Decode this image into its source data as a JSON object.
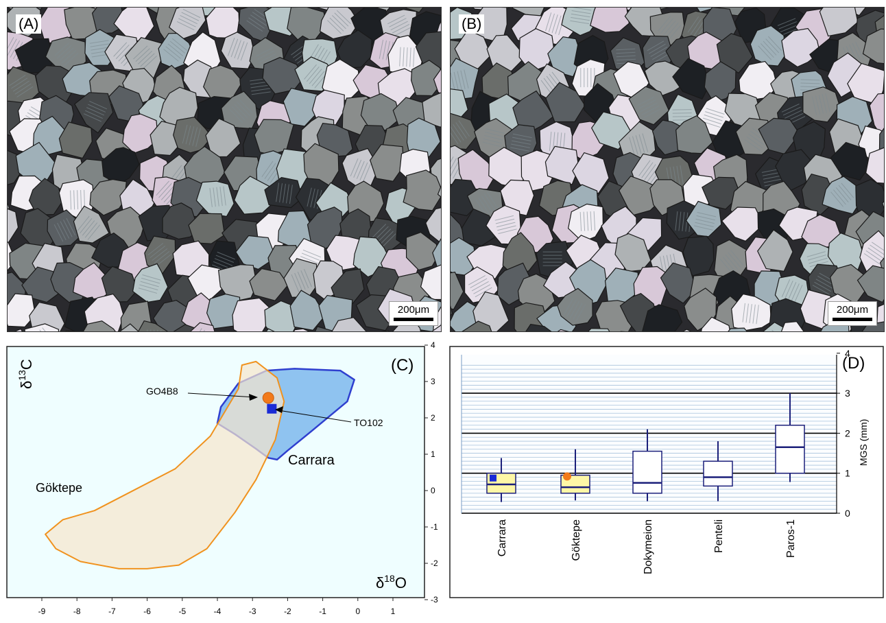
{
  "panels": {
    "A": {
      "label": "(A)",
      "scale_label": "200μm"
    },
    "B": {
      "label": "(B)",
      "scale_label": "200μm"
    },
    "C": {
      "label": "(C)",
      "y_title": "δ13C",
      "x_title": "δ18O",
      "x_ticks": [
        "-9",
        "-8",
        "-7",
        "-6",
        "-5",
        "-4",
        "-3",
        "-2",
        "-1",
        "0",
        "1"
      ],
      "y_ticks": [
        "4",
        "3",
        "2",
        "1",
        "0",
        "-1",
        "-2",
        "-3"
      ],
      "fields": {
        "goktepe": "Göktepe",
        "carrara": "Carrara"
      },
      "samples": {
        "go4b8": "GO4B8",
        "to102": "TO102"
      },
      "colors": {
        "goktepe_fill": "#f7e6cc",
        "goktepe_stroke": "#f0921e",
        "carrara_fill": "#8fc3f0",
        "carrara_stroke": "#2f3fcf",
        "background": "#effeff"
      }
    },
    "D": {
      "label": "(D)",
      "y_title": "MGS (mm)",
      "y_ticks": [
        "4",
        "3",
        "2",
        "1",
        "0"
      ],
      "categories": [
        "Carrara",
        "Göktepe",
        "Dokymeion",
        "Penteli",
        "Paros-1"
      ]
    }
  },
  "chart_data": [
    {
      "type": "scatter",
      "panel": "C",
      "title": "",
      "xlabel": "δ18O",
      "ylabel": "δ13C",
      "xlim": [
        -9.5,
        2
      ],
      "ylim": [
        -3,
        4
      ],
      "series": [
        {
          "name": "GO4B8",
          "x": [
            -2.55
          ],
          "y": [
            2.55
          ]
        },
        {
          "name": "TO102",
          "x": [
            -2.45
          ],
          "y": [
            2.25
          ]
        }
      ],
      "fields": [
        {
          "name": "Göktepe",
          "outline": [
            [
              -8.4,
              -0.8
            ],
            [
              -7.5,
              -0.55
            ],
            [
              -6.5,
              -0.05
            ],
            [
              -5.2,
              0.6
            ],
            [
              -4.2,
              1.5
            ],
            [
              -3.4,
              2.8
            ],
            [
              -3.3,
              3.45
            ],
            [
              -2.9,
              3.55
            ],
            [
              -2.3,
              3.1
            ],
            [
              -2.1,
              2.45
            ],
            [
              -2.35,
              1.4
            ],
            [
              -2.9,
              0.3
            ],
            [
              -3.5,
              -0.6
            ],
            [
              -4.3,
              -1.6
            ],
            [
              -5.1,
              -2.05
            ],
            [
              -6.0,
              -2.15
            ],
            [
              -6.8,
              -2.15
            ],
            [
              -7.9,
              -1.95
            ],
            [
              -8.6,
              -1.6
            ],
            [
              -8.9,
              -1.2
            ]
          ]
        },
        {
          "name": "Carrara",
          "outline": [
            [
              -4.0,
              1.85
            ],
            [
              -3.9,
              2.3
            ],
            [
              -3.4,
              2.95
            ],
            [
              -2.6,
              3.3
            ],
            [
              -1.8,
              3.35
            ],
            [
              -0.5,
              3.3
            ],
            [
              -0.1,
              3.05
            ],
            [
              -0.3,
              2.45
            ],
            [
              -1.3,
              1.65
            ],
            [
              -2.0,
              1.1
            ],
            [
              -2.3,
              0.85
            ],
            [
              -2.55,
              0.9
            ],
            [
              -2.9,
              1.15
            ],
            [
              -3.5,
              1.55
            ]
          ]
        }
      ]
    },
    {
      "type": "box",
      "panel": "D",
      "title": "",
      "xlabel": "",
      "ylabel": "MGS (mm)",
      "ylim": [
        0,
        4
      ],
      "categories": [
        "Carrara",
        "Göktepe",
        "Dokymeion",
        "Penteli",
        "Paros-1"
      ],
      "series": [
        {
          "whisker_low": [
            0.28,
            0.32,
            0.3,
            0.3,
            0.78
          ],
          "q1": [
            0.5,
            0.5,
            0.5,
            0.68,
            1.0
          ],
          "median": [
            0.72,
            0.65,
            0.76,
            0.9,
            1.65
          ],
          "q3": [
            1.0,
            0.95,
            1.55,
            1.3,
            2.2
          ],
          "whisker_high": [
            1.38,
            1.6,
            2.1,
            1.8,
            3.0
          ]
        }
      ],
      "markers": [
        {
          "category": "Carrara",
          "shape": "square",
          "color": "#1a2bd6",
          "value": 0.88
        },
        {
          "category": "Göktepe",
          "shape": "circle",
          "color": "#f27a1a",
          "value": 0.92
        }
      ]
    }
  ]
}
